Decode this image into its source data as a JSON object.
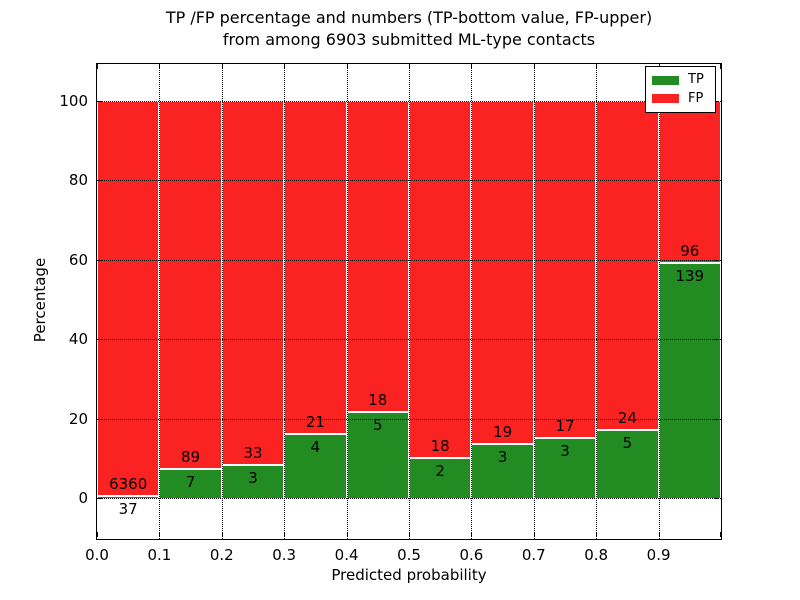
{
  "title": {
    "line1": "TP /FP percentage and numbers (TP-bottom value, FP-upper)",
    "line2": "from among 6903 submitted ML-type contacts"
  },
  "axes": {
    "ylabel": "Percentage",
    "xlabel": "Predicted probability",
    "yticks": [
      0,
      20,
      40,
      60,
      80,
      100
    ],
    "xticks": [
      "0.0",
      "0.1",
      "0.2",
      "0.3",
      "0.4",
      "0.5",
      "0.6",
      "0.7",
      "0.8",
      "0.9"
    ],
    "ylim": [
      -10.3,
      109.3
    ],
    "xlim": [
      0.0,
      1.0
    ],
    "grid": "dotted"
  },
  "legend": [
    {
      "label": "TP",
      "color": "#228b22"
    },
    {
      "label": "FP",
      "color": "#fb2222"
    }
  ],
  "chart_data": {
    "type": "bar",
    "stacked": true,
    "normalized_to_percent": true,
    "total_contacts": 6903,
    "categories": [
      "0.0-0.1",
      "0.1-0.2",
      "0.2-0.3",
      "0.3-0.4",
      "0.4-0.5",
      "0.5-0.6",
      "0.6-0.7",
      "0.7-0.8",
      "0.8-0.9",
      "0.9-1.0"
    ],
    "series": [
      {
        "name": "TP",
        "color": "#228b22",
        "counts": [
          37,
          7,
          3,
          4,
          5,
          2,
          3,
          3,
          5,
          139
        ],
        "pct": [
          0.58,
          7.29,
          8.33,
          16.0,
          21.74,
          10.0,
          13.64,
          15.0,
          17.24,
          59.15
        ]
      },
      {
        "name": "FP",
        "color": "#fb2222",
        "counts": [
          6360,
          89,
          33,
          21,
          18,
          18,
          19,
          17,
          24,
          96
        ],
        "pct": [
          99.42,
          92.71,
          91.67,
          84.0,
          78.26,
          90.0,
          86.36,
          85.0,
          82.76,
          40.85
        ]
      }
    ],
    "title": "TP /FP percentage and numbers (TP-bottom value, FP-upper) from among 6903 submitted ML-type contacts",
    "xlabel": "Predicted probability",
    "ylabel": "Percentage"
  }
}
